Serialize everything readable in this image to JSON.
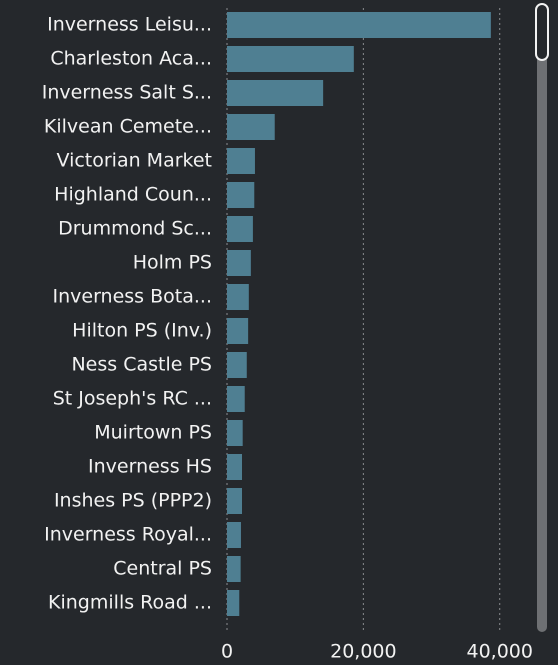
{
  "chart_data": {
    "type": "bar",
    "orientation": "horizontal",
    "categories": [
      "Inverness Leisu...",
      "Charleston Aca...",
      "Inverness Salt S...",
      "Kilvean Cemete...",
      "Victorian Market",
      "Highland Coun...",
      "Drummond Sc...",
      "Holm PS",
      "Inverness Bota...",
      "Hilton PS (Inv.)",
      "Ness Castle PS",
      "St Joseph's RC ...",
      "Muirtown PS",
      "Inverness HS",
      "Inshes PS (PPP2)",
      "Inverness Royal...",
      "Central PS",
      "Kingmills Road ..."
    ],
    "values": [
      38700,
      18600,
      14100,
      7000,
      4100,
      4000,
      3800,
      3500,
      3200,
      3100,
      2900,
      2600,
      2300,
      2200,
      2200,
      2050,
      2000,
      1800
    ],
    "color": "#4f7f92",
    "xlim": [
      0,
      44000
    ],
    "xticks": [
      0,
      {
        "value": 20000,
        "label": "20,000"
      },
      {
        "value": 40000,
        "label": "40,000"
      }
    ],
    "grid": true
  }
}
